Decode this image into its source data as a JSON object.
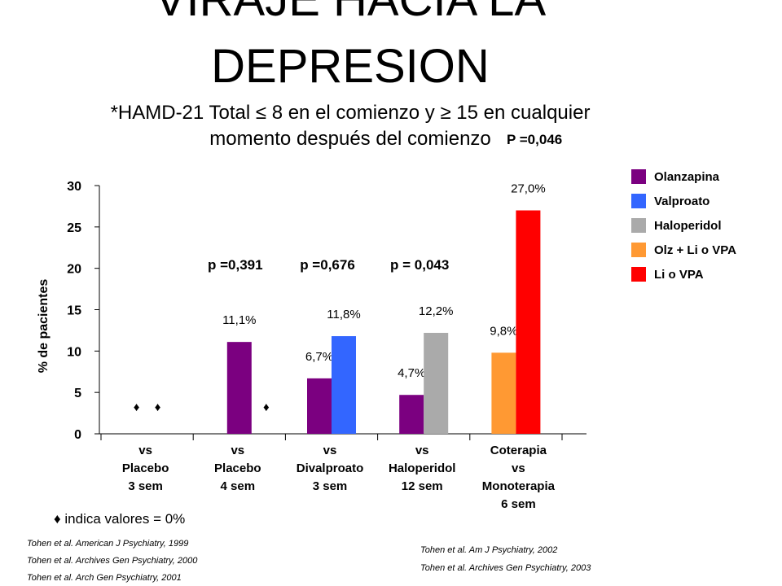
{
  "title_line1": "VIRAJE HACIA LA",
  "title_line2": "DEPRESION",
  "subtitle_line1": "*HAMD-21 Total ≤ 8    en el comienzo  y ≥ 15 en cualquier",
  "subtitle_line2": "momento después del comienzo",
  "footnote": "♦ indica valores = 0%",
  "references_left": [
    "Tohen et al. American J Psychiatry, 1999",
    "Tohen et al. Archives Gen Psychiatry, 2000",
    "Tohen et al. Arch Gen Psychiatry, 2001"
  ],
  "references_right": [
    "Tohen et al. Am J Psychiatry, 2002",
    "Tohen et al. Archives Gen Psychiatry, 2003"
  ],
  "chart_data": {
    "type": "bar",
    "ylabel": "% de pacientes",
    "ylim": [
      0,
      30
    ],
    "yticks": [
      0,
      5,
      10,
      15,
      20,
      25,
      30
    ],
    "categories": [
      [
        "vs",
        "Placebo",
        "3 sem"
      ],
      [
        "vs",
        "Placebo",
        "4 sem"
      ],
      [
        "vs",
        "Divalproato",
        "3 sem"
      ],
      [
        "vs",
        "Haloperidol",
        "12 sem"
      ],
      [
        "Coterapia",
        "vs",
        "Monoterapia",
        "6 sem"
      ]
    ],
    "legend": [
      {
        "name": "Olanzapina",
        "color": "#7B0080"
      },
      {
        "name": "Valproato",
        "color": "#3366FF"
      },
      {
        "name": "Haloperidol",
        "color": "#AAAAAA"
      },
      {
        "name": "Olz + Li o VPA",
        "color": "#FF9933"
      },
      {
        "name": "Li o VPA",
        "color": "#FF0000"
      }
    ],
    "bars": [
      {
        "category": 1,
        "series": "Olanzapina",
        "value": 11.1,
        "label": "11,1%"
      },
      {
        "category": 2,
        "series": "Olanzapina",
        "value": 6.7,
        "label": "6,7%"
      },
      {
        "category": 2,
        "series": "Valproato",
        "value": 11.8,
        "label": "11,8%"
      },
      {
        "category": 3,
        "series": "Olanzapina",
        "value": 4.7,
        "label": "4,7%"
      },
      {
        "category": 3,
        "series": "Haloperidol",
        "value": 12.2,
        "label": "12,2%"
      },
      {
        "category": 4,
        "series": "Olz + Li o VPA",
        "value": 9.8,
        "label": "9,8%"
      },
      {
        "category": 4,
        "series": "Li o VPA",
        "value": 27.0,
        "label": "27,0%"
      }
    ],
    "zero_markers": [
      {
        "category": 0,
        "count": 2
      },
      {
        "category": 1,
        "count": 1
      }
    ],
    "zero_marker_symbol": "♦",
    "p_values": [
      {
        "category": 1,
        "text": "p =0,391"
      },
      {
        "category": 2,
        "text": "p =0,676"
      },
      {
        "category": 3,
        "text": "p = 0,043"
      },
      {
        "category": 4,
        "text": "P =0,046"
      }
    ]
  }
}
